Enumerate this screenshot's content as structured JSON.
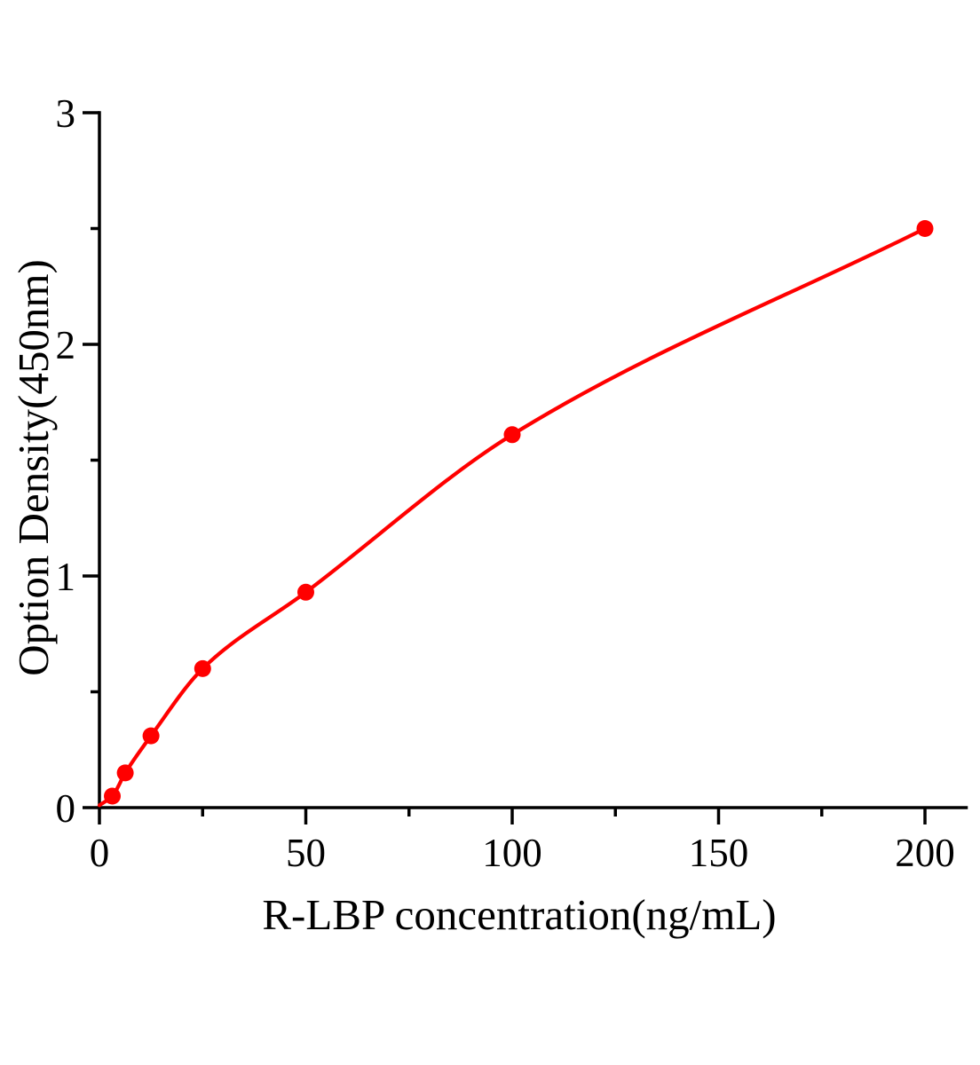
{
  "chart_data": {
    "type": "scatter",
    "title": "",
    "xlabel": "R-LBP concentration(ng/mL)",
    "ylabel": "Option Density(450nm)",
    "points": [
      {
        "x": 3.125,
        "y": 0.05
      },
      {
        "x": 6.25,
        "y": 0.15
      },
      {
        "x": 12.5,
        "y": 0.31
      },
      {
        "x": 25,
        "y": 0.6
      },
      {
        "x": 50,
        "y": 0.93
      },
      {
        "x": 100,
        "y": 1.61
      },
      {
        "x": 200,
        "y": 2.5
      }
    ],
    "curve_start": {
      "x": 0,
      "y": 0.01
    },
    "xlim": [
      0,
      210
    ],
    "ylim": [
      0,
      3
    ],
    "x_major_ticks": [
      0,
      50,
      100,
      150,
      200
    ],
    "x_tick_labels": [
      "0",
      "50",
      "100",
      "150",
      "200"
    ],
    "x_minor_ticks": [
      25,
      75,
      125,
      175
    ],
    "y_major_ticks": [
      0,
      1,
      2,
      3
    ],
    "y_tick_labels": [
      "0",
      "1",
      "2",
      "3"
    ],
    "y_minor_ticks": [
      0.5,
      1.5,
      2.5
    ],
    "grid": false,
    "legend": null,
    "marker_color": "#ff0000",
    "line_color": "#ff0000",
    "axis_color": "#000000",
    "background_color": "#ffffff"
  }
}
